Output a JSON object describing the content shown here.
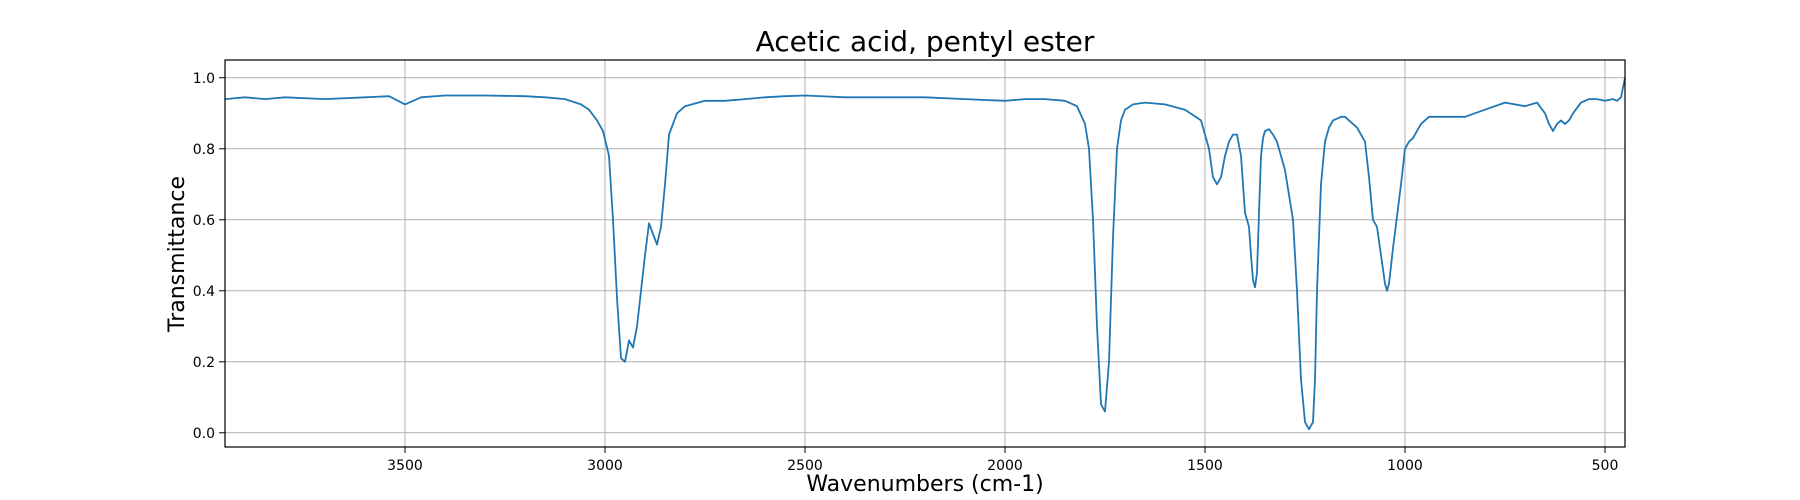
{
  "chart_data": {
    "type": "line",
    "title": "Acetic acid, pentyl ester",
    "xlabel": "Wavenumbers (cm-1)",
    "ylabel": "Transmittance",
    "xlim": [
      3950,
      450
    ],
    "ylim": [
      -0.04,
      1.05
    ],
    "x_reversed": true,
    "grid": true,
    "xticks": [
      3500,
      3000,
      2500,
      2000,
      1500,
      1000,
      500
    ],
    "yticks": [
      0.0,
      0.2,
      0.4,
      0.6,
      0.8,
      1.0
    ],
    "series": [
      {
        "color": "#1f77b4",
        "x": [
          3950,
          3900,
          3850,
          3800,
          3700,
          3600,
          3540,
          3500,
          3460,
          3400,
          3300,
          3200,
          3150,
          3100,
          3060,
          3040,
          3020,
          3005,
          2990,
          2980,
          2970,
          2960,
          2950,
          2940,
          2930,
          2920,
          2900,
          2890,
          2880,
          2870,
          2860,
          2850,
          2840,
          2820,
          2800,
          2750,
          2700,
          2650,
          2600,
          2550,
          2500,
          2400,
          2300,
          2200,
          2100,
          2000,
          1950,
          1900,
          1850,
          1820,
          1800,
          1790,
          1780,
          1770,
          1760,
          1750,
          1740,
          1730,
          1720,
          1710,
          1700,
          1680,
          1650,
          1600,
          1550,
          1510,
          1490,
          1480,
          1470,
          1460,
          1450,
          1440,
          1430,
          1420,
          1410,
          1400,
          1390,
          1385,
          1380,
          1375,
          1370,
          1365,
          1360,
          1355,
          1350,
          1340,
          1330,
          1320,
          1300,
          1280,
          1270,
          1260,
          1250,
          1240,
          1230,
          1225,
          1220,
          1210,
          1200,
          1190,
          1180,
          1160,
          1150,
          1140,
          1120,
          1100,
          1090,
          1080,
          1070,
          1060,
          1050,
          1045,
          1040,
          1030,
          1010,
          1000,
          990,
          980,
          960,
          940,
          900,
          850,
          800,
          750,
          700,
          670,
          650,
          640,
          630,
          620,
          610,
          600,
          590,
          580,
          560,
          540,
          520,
          500,
          480,
          470,
          460,
          450
        ],
        "y": [
          0.94,
          0.945,
          0.94,
          0.945,
          0.94,
          0.945,
          0.948,
          0.925,
          0.945,
          0.95,
          0.95,
          0.948,
          0.945,
          0.94,
          0.925,
          0.91,
          0.88,
          0.85,
          0.78,
          0.6,
          0.38,
          0.21,
          0.2,
          0.26,
          0.24,
          0.3,
          0.5,
          0.59,
          0.56,
          0.53,
          0.58,
          0.7,
          0.84,
          0.9,
          0.92,
          0.935,
          0.935,
          0.94,
          0.945,
          0.948,
          0.95,
          0.945,
          0.945,
          0.945,
          0.94,
          0.935,
          0.94,
          0.94,
          0.935,
          0.92,
          0.87,
          0.8,
          0.6,
          0.3,
          0.08,
          0.06,
          0.2,
          0.55,
          0.8,
          0.88,
          0.91,
          0.925,
          0.93,
          0.925,
          0.91,
          0.88,
          0.8,
          0.72,
          0.7,
          0.72,
          0.78,
          0.82,
          0.84,
          0.84,
          0.78,
          0.62,
          0.58,
          0.5,
          0.43,
          0.41,
          0.45,
          0.62,
          0.78,
          0.83,
          0.85,
          0.855,
          0.84,
          0.82,
          0.74,
          0.6,
          0.4,
          0.15,
          0.03,
          0.01,
          0.03,
          0.15,
          0.4,
          0.7,
          0.82,
          0.86,
          0.88,
          0.89,
          0.89,
          0.88,
          0.86,
          0.82,
          0.72,
          0.6,
          0.58,
          0.5,
          0.42,
          0.4,
          0.42,
          0.52,
          0.7,
          0.8,
          0.82,
          0.83,
          0.87,
          0.89,
          0.89,
          0.89,
          0.91,
          0.93,
          0.92,
          0.93,
          0.9,
          0.87,
          0.85,
          0.87,
          0.88,
          0.87,
          0.88,
          0.9,
          0.93,
          0.94,
          0.94,
          0.935,
          0.94,
          0.935,
          0.945,
          1.0
        ]
      }
    ]
  }
}
